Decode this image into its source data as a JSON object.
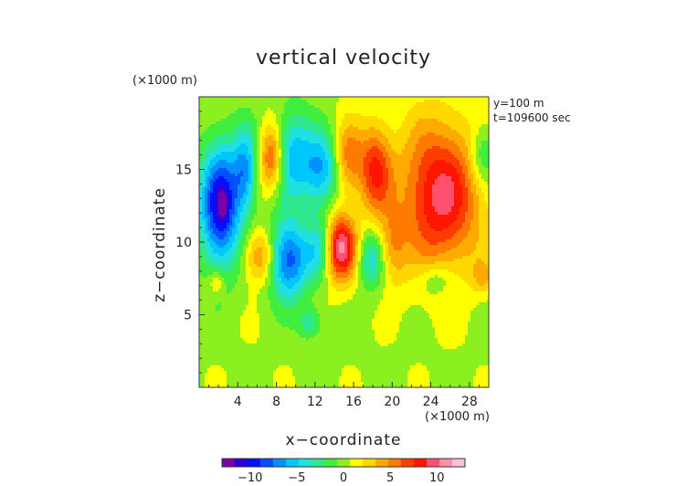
{
  "chart_data": {
    "type": "heatmap",
    "title": "vertical velocity",
    "xlabel": "x−coordinate",
    "ylabel": "z−coordinate",
    "x_unit": "(×1000 m)",
    "y_unit": "(×1000 m)",
    "annotations": [
      "y=100 m",
      "t=109600 sec"
    ],
    "xlim": [
      0,
      30
    ],
    "ylim": [
      0,
      20
    ],
    "x_ticks": [
      4,
      8,
      12,
      16,
      20,
      24,
      28
    ],
    "x_tick_labels": [
      "4",
      "8",
      "12",
      "16",
      "20",
      "24",
      "28"
    ],
    "y_ticks": [
      5,
      10,
      15
    ],
    "y_tick_labels": [
      "5",
      "10",
      "15"
    ],
    "colorbar": {
      "range": [
        -13,
        13
      ],
      "ticks": [
        -10,
        -5,
        0,
        5,
        10
      ],
      "tick_labels": [
        "−10",
        "−5",
        "0",
        "5",
        "10"
      ],
      "colors": [
        "#7a00a8",
        "#2d00d8",
        "#0010ff",
        "#0050ff",
        "#0090ff",
        "#00c8ff",
        "#20e0e0",
        "#30e890",
        "#40ee40",
        "#8cf020",
        "#ffff00",
        "#ffd800",
        "#ffaa00",
        "#ff7a00",
        "#ff3c00",
        "#ff1500",
        "#ff5070",
        "#ff90a8",
        "#ffc0d0"
      ]
    },
    "features": [
      {
        "x": 2.2,
        "z": 12.5,
        "amp": -11.0,
        "sx": 1.5,
        "sz": 3.0
      },
      {
        "x": 2.5,
        "z": 12.6,
        "amp": -3.5,
        "sx": 0.3,
        "sz": 0.7
      },
      {
        "x": 4.8,
        "z": 15.0,
        "amp": -6.0,
        "sx": 0.9,
        "sz": 2.0
      },
      {
        "x": 7.5,
        "z": 15.8,
        "amp": 7.0,
        "sx": 0.9,
        "sz": 1.6
      },
      {
        "x": 9.6,
        "z": 16.0,
        "amp": -6.0,
        "sx": 1.4,
        "sz": 2.2
      },
      {
        "x": 9.2,
        "z": 8.8,
        "amp": -9.0,
        "sx": 1.5,
        "sz": 1.9
      },
      {
        "x": 6.4,
        "z": 9.0,
        "amp": 5.5,
        "sx": 1.2,
        "sz": 1.3
      },
      {
        "x": 12.6,
        "z": 9.6,
        "amp": -5.0,
        "sx": 1.0,
        "sz": 1.5
      },
      {
        "x": 12.6,
        "z": 15.0,
        "amp": -6.5,
        "sx": 1.3,
        "sz": 1.8
      },
      {
        "x": 14.6,
        "z": 9.6,
        "amp": 10.5,
        "sx": 1.2,
        "sz": 1.6
      },
      {
        "x": 15.4,
        "z": 15.8,
        "amp": 5.0,
        "sx": 1.0,
        "sz": 1.8
      },
      {
        "x": 17.8,
        "z": 8.8,
        "amp": -5.0,
        "sx": 1.0,
        "sz": 1.4
      },
      {
        "x": 18.2,
        "z": 15.0,
        "amp": 7.0,
        "sx": 1.2,
        "sz": 2.2
      },
      {
        "x": 20.0,
        "z": 9.6,
        "amp": 3.5,
        "sx": 1.0,
        "sz": 1.8
      },
      {
        "x": 25.0,
        "z": 13.2,
        "amp": 9.0,
        "sx": 3.0,
        "sz": 3.6
      },
      {
        "x": 29.4,
        "z": 16.0,
        "amp": -4.0,
        "sx": 1.0,
        "sz": 1.5
      },
      {
        "x": 29.4,
        "z": 7.6,
        "amp": 2.8,
        "sx": 0.8,
        "sz": 0.8
      },
      {
        "x": 24.5,
        "z": 7.4,
        "amp": -2.5,
        "sx": 1.2,
        "sz": 0.8
      },
      {
        "x": 11.5,
        "z": 4.4,
        "amp": -3.5,
        "sx": 0.9,
        "sz": 0.8
      },
      {
        "x": 1.8,
        "z": 7.2,
        "amp": 3.0,
        "sx": 0.6,
        "sz": 0.6
      }
    ]
  }
}
